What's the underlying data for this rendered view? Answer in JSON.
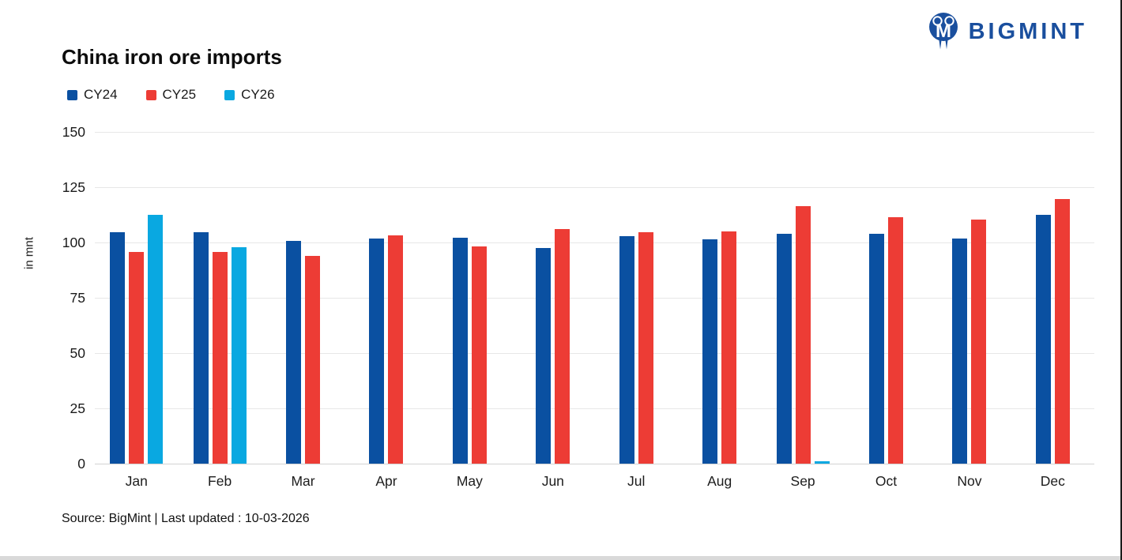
{
  "header": {
    "brand": "BIGMINT"
  },
  "chart": {
    "title": "China iron ore imports",
    "source_note": "Source: BigMint | Last updated : 10-03-2026"
  },
  "chart_data": {
    "type": "bar",
    "title": "China iron ore imports",
    "xlabel": "",
    "ylabel": "in mnt",
    "ylim": [
      0,
      150
    ],
    "yticks": [
      150,
      125,
      100,
      75,
      50,
      25,
      0
    ],
    "grid": true,
    "legend_position": "top-left",
    "categories": [
      "Jan",
      "Feb",
      "Mar",
      "Apr",
      "May",
      "Jun",
      "Jul",
      "Aug",
      "Sep",
      "Oct",
      "Nov",
      "Dec"
    ],
    "series": [
      {
        "name": "CY24",
        "color": "#0A50A1",
        "values": [
          104.5,
          104.5,
          100.7,
          101.8,
          102.0,
          97.6,
          102.9,
          101.4,
          104.1,
          103.8,
          101.9,
          112.5
        ]
      },
      {
        "name": "CY25",
        "color": "#ED3C35",
        "values": [
          95.7,
          95.7,
          94.0,
          103.1,
          98.1,
          106.0,
          104.6,
          105.1,
          116.3,
          111.3,
          110.5,
          119.7
        ]
      },
      {
        "name": "CY26",
        "color": "#09A8E1",
        "values": [
          112.5,
          97.8,
          null,
          null,
          null,
          null,
          null,
          null,
          0.9,
          null,
          null,
          null
        ]
      }
    ]
  },
  "colors": {
    "brand_navy": "#1A4F9E",
    "gridline": "#e7e7e7",
    "baseline": "#d2d2d2"
  }
}
